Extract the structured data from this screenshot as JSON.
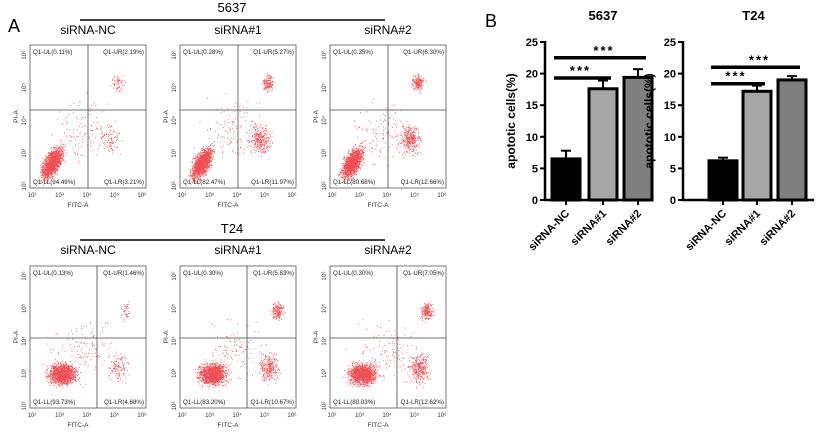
{
  "panel_labels": {
    "a": "A",
    "b": "B"
  },
  "flow": {
    "x_axis_label": "FITC-A",
    "y_axis_label": "PI-A",
    "tick_labels": [
      "10²",
      "10³",
      "10⁴",
      "10⁵",
      "10⁶"
    ],
    "dot_color": "#e8141b",
    "rows": [
      {
        "cell_line": "5637",
        "plots": [
          {
            "group": "siRNA-NC",
            "UL": "Q1-UL(0.11%)",
            "UR": "Q1-UR(2.19%)",
            "LL": "Q1-LL(94.49%)",
            "LR": "Q1-LR(3.21%)"
          },
          {
            "group": "siRNA#1",
            "UL": "Q1-UL(0.28%)",
            "UR": "Q1-UR(5.27%)",
            "LL": "Q1-LL(82.47%)",
            "LR": "Q1-LR(11.97%)"
          },
          {
            "group": "siRNA#2",
            "UL": "Q1-UL(0.35%)",
            "UR": "Q1-UR(6.30%)",
            "LL": "Q1-LL(80.68%)",
            "LR": "Q1-LR(12.66%)"
          }
        ]
      },
      {
        "cell_line": "T24",
        "plots": [
          {
            "group": "siRNA-NC",
            "UL": "Q1-UL(0.13%)",
            "UR": "Q1-UR(1.46%)",
            "LL": "Q1-LL(93.73%)",
            "LR": "Q1-LR(4.68%)"
          },
          {
            "group": "siRNA#1",
            "UL": "Q1-UL(0.30%)",
            "UR": "Q1-UR(5.83%)",
            "LL": "Q1-LL(83.20%)",
            "LR": "Q1-LR(10.67%)"
          },
          {
            "group": "siRNA#2",
            "UL": "Q1-UL(0.30%)",
            "UR": "Q1-UR(7.05%)",
            "LL": "Q1-LL(80.03%)",
            "LR": "Q1-LR(12.62%)"
          }
        ]
      }
    ]
  },
  "chart_data": [
    {
      "type": "bar",
      "title": "5637",
      "ylabel": "apototic cells(%)",
      "categories": [
        "siRNA-NC",
        "siRNA#1",
        "siRNA#2"
      ],
      "values": [
        6.5,
        17.6,
        19.4
      ],
      "error_upper": [
        7.8,
        18.9,
        20.7
      ],
      "ylim": [
        0,
        25
      ],
      "yticks": [
        0,
        5,
        10,
        15,
        20,
        25
      ],
      "bar_colors": [
        "#000000",
        "#a6a6a6",
        "#7f7f7f"
      ],
      "significance": [
        {
          "from": "siRNA-NC",
          "to": "siRNA#1",
          "y": 19.3,
          "label": "***"
        },
        {
          "from": "siRNA-NC",
          "to": "siRNA#2",
          "y": 22.5,
          "label": "***"
        }
      ]
    },
    {
      "type": "bar",
      "title": "T24",
      "ylabel": "apototic cells(%)",
      "categories": [
        "siRNA-NC",
        "siRNA#1",
        "siRNA#2"
      ],
      "values": [
        6.2,
        17.2,
        19.0
      ],
      "error_upper": [
        6.7,
        18.1,
        19.6
      ],
      "ylim": [
        0,
        25
      ],
      "yticks": [
        0,
        5,
        10,
        15,
        20,
        25
      ],
      "bar_colors": [
        "#000000",
        "#a6a6a6",
        "#7f7f7f"
      ],
      "significance": [
        {
          "from": "siRNA-NC",
          "to": "siRNA#1",
          "y": 18.4,
          "label": "***"
        },
        {
          "from": "siRNA-NC",
          "to": "siRNA#2",
          "y": 21.0,
          "label": "***"
        }
      ]
    }
  ]
}
